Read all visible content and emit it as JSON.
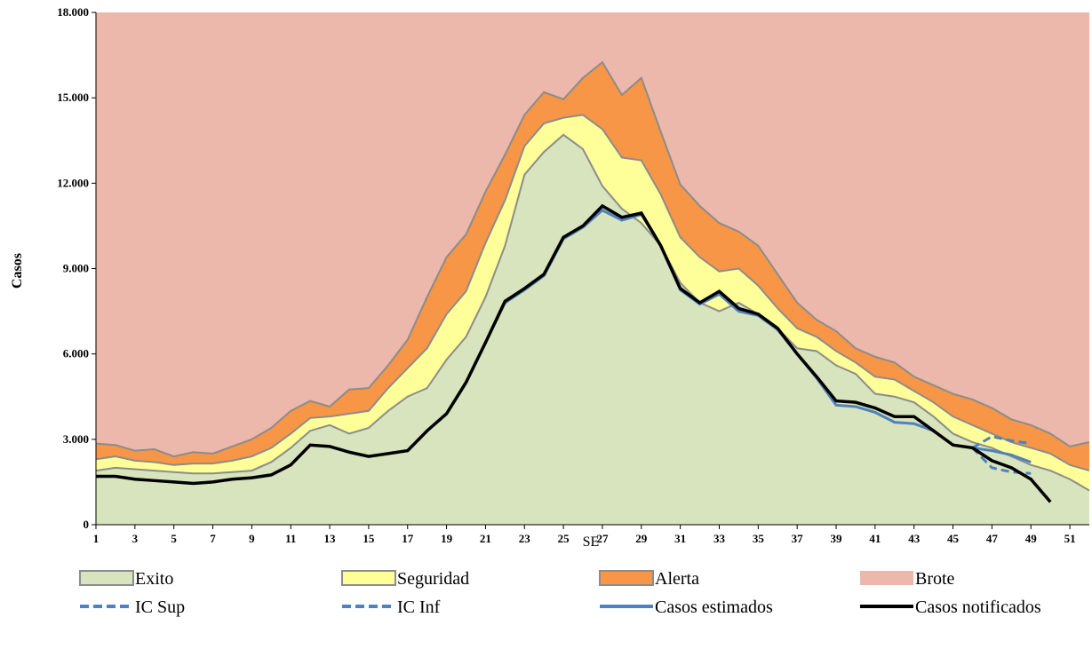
{
  "chart_data": {
    "type": "endemic-channel",
    "x_label": "SE",
    "y_label": "Casos",
    "x": [
      1,
      2,
      3,
      4,
      5,
      6,
      7,
      8,
      9,
      10,
      11,
      12,
      13,
      14,
      15,
      16,
      17,
      18,
      19,
      20,
      21,
      22,
      23,
      24,
      25,
      26,
      27,
      28,
      29,
      30,
      31,
      32,
      33,
      34,
      35,
      36,
      37,
      38,
      39,
      40,
      41,
      42,
      43,
      44,
      45,
      46,
      47,
      48,
      49,
      50,
      51,
      52
    ],
    "xlim": [
      1,
      52
    ],
    "xticks": [
      1,
      3,
      5,
      7,
      9,
      11,
      13,
      15,
      17,
      19,
      21,
      23,
      25,
      27,
      29,
      31,
      33,
      35,
      37,
      39,
      41,
      43,
      45,
      47,
      49,
      51
    ],
    "ylim": [
      0,
      18000
    ],
    "yticks": [
      {
        "value": 0,
        "label": "0"
      },
      {
        "value": 3000,
        "label": "3.000"
      },
      {
        "value": 6000,
        "label": "6.000"
      },
      {
        "value": 9000,
        "label": "9.000"
      },
      {
        "value": 12000,
        "label": "12.000"
      },
      {
        "value": 15000,
        "label": "15.000"
      },
      {
        "value": 18000,
        "label": "18.000"
      }
    ],
    "series": [
      {
        "name": "Exito",
        "kind": "area",
        "color": "#d7e4bd",
        "values": [
          1900,
          2000,
          1950,
          1900,
          1850,
          1800,
          1800,
          1850,
          1900,
          2200,
          2700,
          3300,
          3500,
          3200,
          3400,
          4000,
          4500,
          4800,
          5800,
          6600,
          8000,
          9800,
          12300,
          13100,
          13700,
          13200,
          11900,
          11100,
          10600,
          9800,
          8500,
          7800,
          7500,
          7800,
          7400,
          6900,
          6200,
          6100,
          5600,
          5300,
          4600,
          4500,
          4300,
          3800,
          3200,
          2900,
          2700,
          2400,
          2100,
          1900,
          1600,
          1200
        ]
      },
      {
        "name": "Seguridad",
        "kind": "area",
        "color": "#ffff99",
        "values": [
          2300,
          2400,
          2250,
          2200,
          2100,
          2150,
          2150,
          2250,
          2400,
          2700,
          3200,
          3750,
          3800,
          3900,
          4000,
          4800,
          5500,
          6200,
          7400,
          8200,
          9900,
          11400,
          13300,
          14100,
          14300,
          14400,
          13900,
          12900,
          12800,
          11600,
          10100,
          9400,
          8900,
          9000,
          8400,
          7600,
          6900,
          6600,
          6100,
          5700,
          5200,
          5100,
          4700,
          4300,
          3800,
          3500,
          3200,
          2900,
          2700,
          2500,
          2100,
          1900
        ]
      },
      {
        "name": "Alerta",
        "kind": "area",
        "color": "#f79646",
        "values": [
          2850,
          2800,
          2600,
          2650,
          2400,
          2550,
          2500,
          2750,
          3000,
          3400,
          4000,
          4350,
          4150,
          4750,
          4800,
          5600,
          6500,
          8000,
          9400,
          10200,
          11700,
          13000,
          14400,
          15200,
          14950,
          15700,
          16250,
          15100,
          15700,
          13800,
          11950,
          11200,
          10600,
          10300,
          9800,
          8800,
          7800,
          7200,
          6800,
          6200,
          5900,
          5700,
          5200,
          4900,
          4600,
          4400,
          4100,
          3700,
          3500,
          3200,
          2750,
          2900
        ]
      },
      {
        "name": "Brote",
        "kind": "top-area",
        "color": "#ebb8ab"
      },
      {
        "name": "IC Sup",
        "kind": "line",
        "dash": true,
        "color": "#4f81bd",
        "values": [
          null,
          null,
          null,
          null,
          null,
          null,
          null,
          null,
          null,
          null,
          null,
          null,
          null,
          null,
          null,
          null,
          null,
          null,
          null,
          null,
          null,
          null,
          null,
          null,
          null,
          null,
          null,
          null,
          null,
          null,
          null,
          null,
          null,
          null,
          null,
          null,
          null,
          null,
          null,
          null,
          null,
          null,
          null,
          null,
          null,
          2700,
          3100,
          2950,
          2850,
          null,
          null,
          null
        ]
      },
      {
        "name": "IC Inf",
        "kind": "line",
        "dash": true,
        "color": "#4f81bd",
        "values": [
          null,
          null,
          null,
          null,
          null,
          null,
          null,
          null,
          null,
          null,
          null,
          null,
          null,
          null,
          null,
          null,
          null,
          null,
          null,
          null,
          null,
          null,
          null,
          null,
          null,
          null,
          null,
          null,
          null,
          null,
          null,
          null,
          null,
          null,
          null,
          null,
          null,
          null,
          null,
          null,
          null,
          null,
          null,
          null,
          null,
          2700,
          2000,
          1850,
          1800,
          null,
          null,
          null
        ]
      },
      {
        "name": "Casos estimados",
        "kind": "line",
        "color": "#4f81bd",
        "values": [
          1700,
          1700,
          1600,
          1550,
          1500,
          1450,
          1500,
          1600,
          1650,
          1750,
          2100,
          2800,
          2750,
          2550,
          2400,
          2500,
          2600,
          3300,
          3900,
          5000,
          6400,
          7800,
          8250,
          8750,
          10050,
          10450,
          11050,
          10700,
          10900,
          9800,
          8250,
          7750,
          8100,
          7500,
          7350,
          6850,
          6000,
          5150,
          4200,
          4150,
          3950,
          3600,
          3550,
          3300,
          2800,
          2700,
          2600,
          2450,
          2200,
          null,
          null,
          null
        ]
      },
      {
        "name": "Casos notificados",
        "kind": "line",
        "color": "#000000",
        "values": [
          1700,
          1700,
          1600,
          1550,
          1500,
          1450,
          1500,
          1600,
          1650,
          1750,
          2100,
          2800,
          2750,
          2550,
          2400,
          2500,
          2600,
          3300,
          3900,
          5000,
          6400,
          7850,
          8300,
          8800,
          10100,
          10500,
          11200,
          10800,
          10950,
          9800,
          8300,
          7800,
          8200,
          7600,
          7400,
          6900,
          6000,
          5200,
          4350,
          4300,
          4100,
          3800,
          3800,
          3300,
          2800,
          2700,
          2250,
          2000,
          1600,
          800,
          null,
          null
        ]
      }
    ],
    "outline_color": "#8c8c8c"
  }
}
